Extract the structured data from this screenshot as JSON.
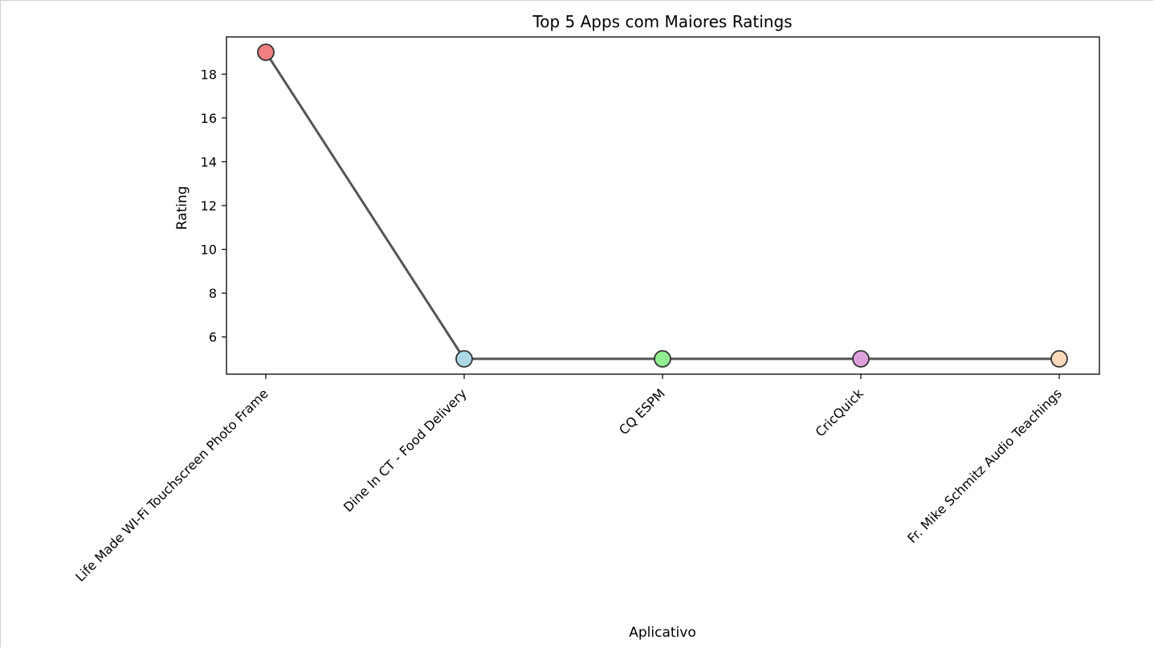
{
  "chart_data": {
    "type": "line",
    "title": "Top 5 Apps com Maiores Ratings",
    "xlabel": "Aplicativo",
    "ylabel": "Rating",
    "categories": [
      "Life Made WI-Fi Touchscreen Photo Frame",
      "Dine In CT - Food Delivery",
      "CQ ESPM",
      "CricQuick",
      "Fr. Mike Schmitz Audio Teachings"
    ],
    "values": [
      19,
      5,
      5,
      5,
      5
    ],
    "marker_colors": [
      "#f08080",
      "#add8e6",
      "#90ee90",
      "#dda0dd",
      "#ffdab9"
    ],
    "line_color": "#555555",
    "marker_edge_color": "#333333",
    "ylim": [
      4.3,
      19.7
    ],
    "yticks": [
      6,
      8,
      10,
      12,
      14,
      16,
      18
    ],
    "grid": false,
    "legend": "none"
  }
}
